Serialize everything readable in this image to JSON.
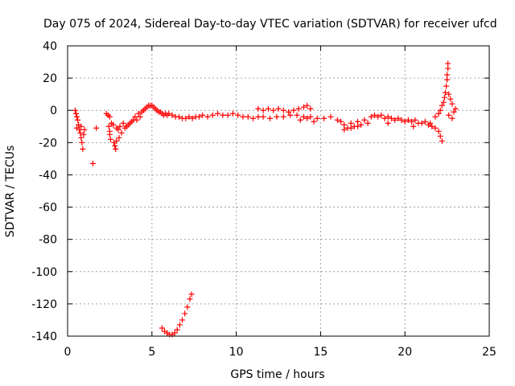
{
  "chart_data": {
    "type": "scatter",
    "title": "Day 075 of 2024, Sidereal Day-to-day VTEC variation (SDTVAR) for receiver ufcd",
    "xlabel": "GPS time / hours",
    "ylabel": "SDTVAR / TECUs",
    "xlim": [
      0,
      25
    ],
    "ylim": [
      -140,
      40
    ],
    "xticks": [
      0,
      5,
      10,
      15,
      20,
      25
    ],
    "yticks": [
      40,
      20,
      0,
      -20,
      -40,
      -60,
      -80,
      -100,
      -120,
      -140
    ],
    "grid": true,
    "marker": "plus",
    "colors": {
      "series": "#ff0000",
      "grid": "#a0a0a0",
      "axes": "#000000"
    },
    "series": [
      {
        "name": "SDTVAR",
        "points": [
          [
            0.45,
            0
          ],
          [
            0.5,
            -2
          ],
          [
            0.55,
            -4
          ],
          [
            0.6,
            -6
          ],
          [
            0.65,
            -9
          ],
          [
            0.55,
            -11
          ],
          [
            0.7,
            -12
          ],
          [
            0.75,
            -14
          ],
          [
            0.8,
            -17
          ],
          [
            0.85,
            -20
          ],
          [
            0.9,
            -24
          ],
          [
            0.8,
            -10
          ],
          [
            0.95,
            -15
          ],
          [
            1.0,
            -12
          ],
          [
            1.5,
            -33
          ],
          [
            1.7,
            -11
          ],
          [
            2.3,
            -2
          ],
          [
            2.4,
            -3
          ],
          [
            2.5,
            -4
          ],
          [
            2.45,
            -10
          ],
          [
            2.5,
            -13
          ],
          [
            2.5,
            -15
          ],
          [
            2.55,
            -18
          ],
          [
            2.6,
            -8
          ],
          [
            2.7,
            -9
          ],
          [
            2.75,
            -20
          ],
          [
            2.8,
            -22
          ],
          [
            2.85,
            -24
          ],
          [
            2.9,
            -19
          ],
          [
            2.9,
            -11
          ],
          [
            3.0,
            -12
          ],
          [
            3.05,
            -17
          ],
          [
            3.1,
            -10
          ],
          [
            3.2,
            -14
          ],
          [
            3.3,
            -8
          ],
          [
            3.4,
            -11
          ],
          [
            3.5,
            -10
          ],
          [
            3.6,
            -9
          ],
          [
            3.7,
            -8
          ],
          [
            3.8,
            -7
          ],
          [
            3.9,
            -6
          ],
          [
            4.0,
            -4
          ],
          [
            4.1,
            -6
          ],
          [
            4.2,
            -2
          ],
          [
            4.3,
            -4
          ],
          [
            4.4,
            -1
          ],
          [
            4.5,
            0
          ],
          [
            4.6,
            1
          ],
          [
            4.7,
            2
          ],
          [
            4.8,
            3
          ],
          [
            4.9,
            3
          ],
          [
            5.0,
            3
          ],
          [
            5.1,
            2
          ],
          [
            5.2,
            1
          ],
          [
            5.3,
            0
          ],
          [
            5.4,
            -1
          ],
          [
            5.5,
            -1
          ],
          [
            5.6,
            -2
          ],
          [
            5.7,
            -3
          ],
          [
            5.8,
            -2
          ],
          [
            5.9,
            -3
          ],
          [
            6.0,
            -2
          ],
          [
            6.2,
            -3
          ],
          [
            6.4,
            -4
          ],
          [
            6.6,
            -4
          ],
          [
            6.8,
            -5
          ],
          [
            7.0,
            -5
          ],
          [
            7.2,
            -4
          ],
          [
            7.4,
            -5
          ],
          [
            7.6,
            -4
          ],
          [
            7.8,
            -4
          ],
          [
            8.0,
            -3
          ],
          [
            8.3,
            -4
          ],
          [
            8.6,
            -3
          ],
          [
            8.9,
            -2
          ],
          [
            9.2,
            -3
          ],
          [
            9.5,
            -3
          ],
          [
            9.8,
            -2
          ],
          [
            10.1,
            -3
          ],
          [
            10.4,
            -4
          ],
          [
            10.7,
            -4
          ],
          [
            11.0,
            -5
          ],
          [
            11.3,
            -4
          ],
          [
            11.6,
            -4
          ],
          [
            12.0,
            -5
          ],
          [
            12.4,
            -4
          ],
          [
            12.8,
            -4
          ],
          [
            13.2,
            -3
          ],
          [
            13.6,
            -3
          ],
          [
            14.0,
            -4
          ],
          [
            14.4,
            -4
          ],
          [
            14.8,
            -5
          ],
          [
            15.2,
            -5
          ],
          [
            15.6,
            -4
          ],
          [
            16.0,
            -6
          ],
          [
            11.3,
            1
          ],
          [
            11.6,
            0
          ],
          [
            11.9,
            1
          ],
          [
            12.2,
            0
          ],
          [
            12.5,
            1
          ],
          [
            12.8,
            0
          ],
          [
            13.1,
            -1
          ],
          [
            13.4,
            0
          ],
          [
            13.7,
            1
          ],
          [
            14.0,
            2
          ],
          [
            14.2,
            3
          ],
          [
            14.4,
            1
          ],
          [
            13.8,
            -6
          ],
          [
            14.2,
            -5
          ],
          [
            14.6,
            -7
          ],
          [
            16.2,
            -7
          ],
          [
            16.4,
            -9
          ],
          [
            16.6,
            -11
          ],
          [
            16.8,
            -8
          ],
          [
            17.0,
            -10
          ],
          [
            17.2,
            -7
          ],
          [
            17.4,
            -9
          ],
          [
            17.6,
            -6
          ],
          [
            17.8,
            -8
          ],
          [
            18.0,
            -4
          ],
          [
            18.2,
            -3
          ],
          [
            18.4,
            -4
          ],
          [
            18.6,
            -3
          ],
          [
            18.8,
            -5
          ],
          [
            19.0,
            -4
          ],
          [
            19.2,
            -5
          ],
          [
            19.4,
            -6
          ],
          [
            19.6,
            -5
          ],
          [
            19.8,
            -6
          ],
          [
            20.0,
            -7
          ],
          [
            20.2,
            -6
          ],
          [
            20.4,
            -7
          ],
          [
            20.6,
            -6
          ],
          [
            20.8,
            -8
          ],
          [
            21.0,
            -8
          ],
          [
            21.2,
            -7
          ],
          [
            21.4,
            -9
          ],
          [
            21.6,
            -10
          ],
          [
            21.8,
            -11
          ],
          [
            22.0,
            -13
          ],
          [
            22.1,
            -16
          ],
          [
            22.2,
            -19
          ],
          [
            16.4,
            -12
          ],
          [
            16.8,
            -11
          ],
          [
            17.2,
            -10
          ],
          [
            19.0,
            -8
          ],
          [
            20.5,
            -10
          ],
          [
            21.5,
            -8
          ],
          [
            21.8,
            -4
          ],
          [
            22.0,
            -2
          ],
          [
            22.1,
            0
          ],
          [
            22.2,
            3
          ],
          [
            22.3,
            5
          ],
          [
            22.35,
            8
          ],
          [
            22.4,
            11
          ],
          [
            22.45,
            15
          ],
          [
            22.5,
            19
          ],
          [
            22.5,
            22
          ],
          [
            22.55,
            26
          ],
          [
            22.55,
            29
          ],
          [
            22.6,
            10
          ],
          [
            22.7,
            7
          ],
          [
            22.8,
            4
          ],
          [
            22.6,
            -3
          ],
          [
            22.8,
            -5
          ],
          [
            22.9,
            -1
          ],
          [
            23.0,
            1
          ],
          [
            5.6,
            -135
          ],
          [
            5.75,
            -137
          ],
          [
            5.9,
            -138
          ],
          [
            6.05,
            -139
          ],
          [
            6.2,
            -139
          ],
          [
            6.35,
            -138
          ],
          [
            6.5,
            -136
          ],
          [
            6.65,
            -133
          ],
          [
            6.8,
            -130
          ],
          [
            6.95,
            -126
          ],
          [
            7.1,
            -122
          ],
          [
            7.25,
            -117
          ],
          [
            7.35,
            -114
          ]
        ]
      }
    ]
  }
}
